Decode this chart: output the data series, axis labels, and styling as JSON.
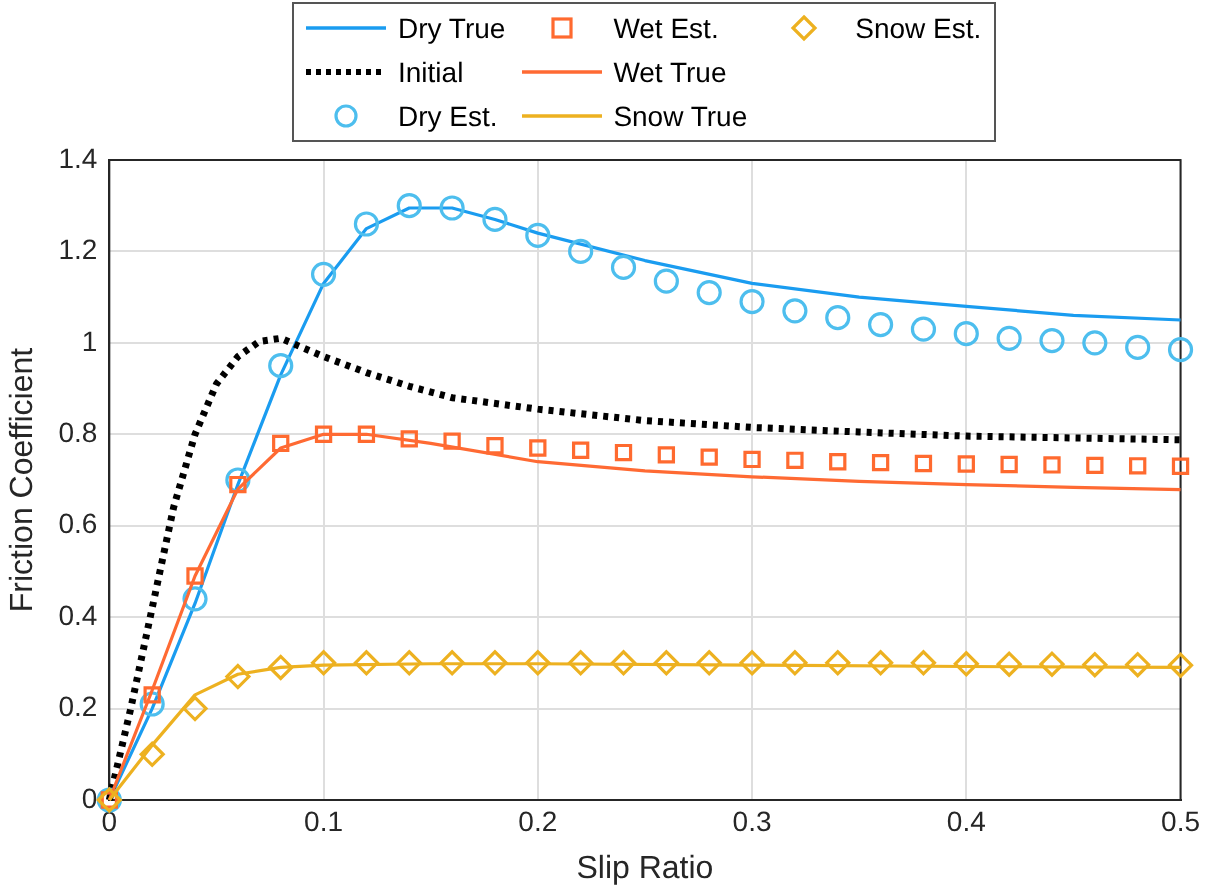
{
  "chart_data": {
    "type": "line",
    "xlabel": "Slip Ratio",
    "ylabel": "Friction Coefficient",
    "x": [
      0,
      0.02,
      0.04,
      0.06,
      0.08,
      0.1,
      0.12,
      0.14,
      0.16,
      0.18,
      0.2,
      0.22,
      0.24,
      0.26,
      0.28,
      0.3,
      0.32,
      0.34,
      0.36,
      0.38,
      0.4,
      0.42,
      0.44,
      0.46,
      0.48,
      0.5
    ],
    "xlim": [
      0,
      0.5
    ],
    "xticks": [
      0,
      0.1,
      0.2,
      0.3,
      0.4,
      0.5
    ],
    "ylim": [
      0,
      1.4
    ],
    "yticks": [
      0,
      0.2,
      0.4,
      0.6,
      0.8,
      1,
      1.2,
      1.4
    ],
    "grid": true,
    "legend": "top",
    "series": [
      {
        "name": "Dry True",
        "type": "line",
        "color": "#1a9cf0",
        "marker": "none",
        "line_style": "solid",
        "x": [
          0,
          0.02,
          0.04,
          0.06,
          0.08,
          0.1,
          0.12,
          0.14,
          0.16,
          0.18,
          0.2,
          0.25,
          0.3,
          0.35,
          0.4,
          0.45,
          0.5
        ],
        "values": [
          0,
          0.2,
          0.43,
          0.69,
          0.93,
          1.13,
          1.25,
          1.295,
          1.295,
          1.27,
          1.24,
          1.18,
          1.13,
          1.1,
          1.08,
          1.06,
          1.05
        ]
      },
      {
        "name": "Initial",
        "type": "line",
        "color": "#000000",
        "marker": "none",
        "line_style": "dotted",
        "x": [
          0,
          0.01,
          0.02,
          0.03,
          0.04,
          0.05,
          0.06,
          0.07,
          0.08,
          0.09,
          0.1,
          0.12,
          0.14,
          0.16,
          0.2,
          0.25,
          0.3,
          0.35,
          0.4,
          0.45,
          0.5
        ],
        "values": [
          0,
          0.2,
          0.42,
          0.64,
          0.8,
          0.91,
          0.97,
          1.003,
          1.01,
          0.99,
          0.97,
          0.935,
          0.905,
          0.88,
          0.855,
          0.83,
          0.815,
          0.805,
          0.796,
          0.792,
          0.788
        ]
      },
      {
        "name": "Dry Est.",
        "type": "scatter",
        "color": "#4dbeee",
        "marker": "circle",
        "values": [
          0,
          0.21,
          0.44,
          0.7,
          0.95,
          1.15,
          1.26,
          1.3,
          1.295,
          1.27,
          1.235,
          1.2,
          1.165,
          1.135,
          1.11,
          1.09,
          1.07,
          1.055,
          1.04,
          1.03,
          1.02,
          1.01,
          1.005,
          1,
          0.99,
          0.985
        ]
      },
      {
        "name": "Wet Est.",
        "type": "scatter",
        "color": "#ff6a2f",
        "marker": "square",
        "values": [
          0,
          0.23,
          0.49,
          0.69,
          0.78,
          0.8,
          0.8,
          0.79,
          0.785,
          0.775,
          0.77,
          0.765,
          0.76,
          0.755,
          0.75,
          0.745,
          0.743,
          0.74,
          0.738,
          0.736,
          0.735,
          0.734,
          0.733,
          0.732,
          0.731,
          0.73
        ]
      },
      {
        "name": "Wet True",
        "type": "line",
        "color": "#ff6a33",
        "marker": "none",
        "line_style": "solid",
        "x": [
          0,
          0.02,
          0.04,
          0.06,
          0.08,
          0.1,
          0.12,
          0.15,
          0.2,
          0.25,
          0.3,
          0.35,
          0.4,
          0.45,
          0.5
        ],
        "values": [
          0,
          0.24,
          0.49,
          0.68,
          0.77,
          0.8,
          0.8,
          0.78,
          0.74,
          0.72,
          0.707,
          0.697,
          0.69,
          0.684,
          0.679
        ]
      },
      {
        "name": "Snow True",
        "type": "line",
        "color": "#edb120",
        "marker": "none",
        "line_style": "solid",
        "x": [
          0,
          0.02,
          0.04,
          0.06,
          0.08,
          0.1,
          0.15,
          0.2,
          0.3,
          0.4,
          0.5
        ],
        "values": [
          0,
          0.12,
          0.23,
          0.275,
          0.29,
          0.295,
          0.298,
          0.298,
          0.295,
          0.292,
          0.29
        ]
      },
      {
        "name": "Snow Est.",
        "type": "scatter",
        "color": "#edb120",
        "marker": "diamond",
        "values": [
          0,
          0.1,
          0.2,
          0.27,
          0.29,
          0.3,
          0.3,
          0.3,
          0.3,
          0.3,
          0.3,
          0.3,
          0.3,
          0.3,
          0.3,
          0.3,
          0.3,
          0.3,
          0.3,
          0.3,
          0.298,
          0.297,
          0.297,
          0.296,
          0.296,
          0.295
        ]
      }
    ]
  }
}
